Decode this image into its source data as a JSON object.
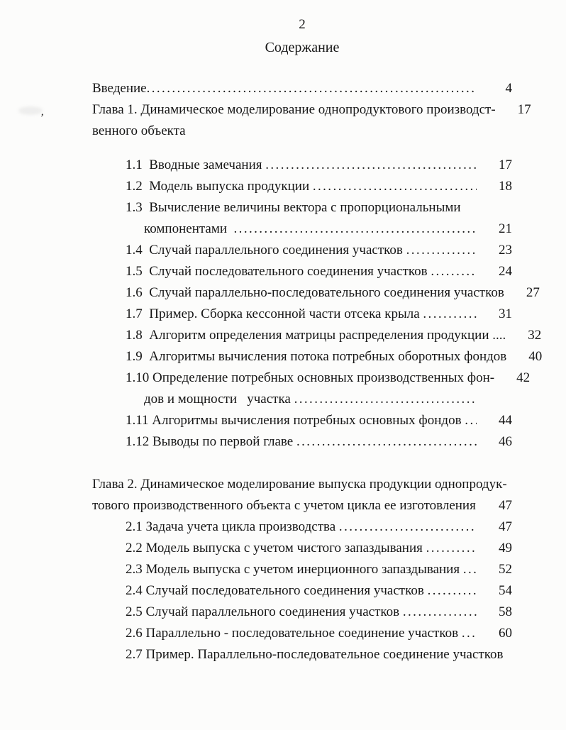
{
  "page": {
    "number": "2",
    "title": "Содержание"
  },
  "toc": {
    "leader_dots": "......................................................................................................................................................",
    "rows": [
      {
        "indent": 0,
        "text": "Введение",
        "leader": true,
        "page": "4"
      },
      {
        "indent": 0,
        "text": "Глава 1. Динамическое моделирование однопродуктового производст-",
        "leader": false,
        "page": "17"
      },
      {
        "indent": 0,
        "text": "венного объекта",
        "leader": false,
        "page": "",
        "gap": "sm"
      },
      {
        "indent": 1,
        "text": "1.1  Вводные замечания ",
        "leader": true,
        "page": "17"
      },
      {
        "indent": 1,
        "text": "1.2  Модель выпуска продукции ",
        "leader": true,
        "page": "18"
      },
      {
        "indent": 1,
        "text": "1.3  Вычисление величины вектора с пропорциональными",
        "leader": false,
        "page": ""
      },
      {
        "indent": 2,
        "text": "компонентами  ",
        "leader": true,
        "page": "21"
      },
      {
        "indent": 1,
        "text": "1.4  Случай параллельного соединения участков ",
        "leader": true,
        "page": "23"
      },
      {
        "indent": 1,
        "text": "1.5  Случай последовательного соединения участков ",
        "leader": true,
        "page": "24"
      },
      {
        "indent": 1,
        "text": "1.6  Случай параллельно-последовательного соединения участков",
        "leader": false,
        "page": "27"
      },
      {
        "indent": 1,
        "text": "1.7  Пример. Сборка кессонной части отсека крыла ",
        "leader": true,
        "page": "31"
      },
      {
        "indent": 1,
        "text": "1.8  Алгоритм определения матрицы распределения продукции ....",
        "leader": false,
        "page": "32"
      },
      {
        "indent": 1,
        "text": "1.9  Алгоритмы вычисления потока потребных оборотных фондов",
        "leader": false,
        "page": "40"
      },
      {
        "indent": 1,
        "text": "1.10 Определение потребных основных производственных фон-",
        "leader": false,
        "page": "42"
      },
      {
        "indent": 2,
        "text": "дов и мощности   участка ",
        "leader": true,
        "page": ""
      },
      {
        "indent": 1,
        "text": "1.11 Алгоритмы вычисления потребных основных фондов ",
        "leader": true,
        "page": "44"
      },
      {
        "indent": 1,
        "text": "1.12 Выводы по первой главе ",
        "leader": true,
        "page": "46",
        "gap": "lg"
      },
      {
        "indent": 0,
        "text": "Глава 2. Динамическое моделирование выпуска продукции однопродук-",
        "leader": false,
        "page": ""
      },
      {
        "indent": 0,
        "text": "тового производственного объекта с учетом цикла ее изготовления",
        "leader": false,
        "page": "47"
      },
      {
        "indent": 1,
        "text": "2.1 Задача учета цикла производства ",
        "leader": true,
        "page": "47"
      },
      {
        "indent": 1,
        "text": "2.2 Модель выпуска с учетом чистого запаздывания ",
        "leader": true,
        "page": "49"
      },
      {
        "indent": 1,
        "text": "2.3 Модель выпуска с учетом инерционного запаздывания ",
        "leader": true,
        "page": "52"
      },
      {
        "indent": 1,
        "text": "2.4 Случай последовательного соединения участков ",
        "leader": true,
        "page": "54"
      },
      {
        "indent": 1,
        "text": "2.5 Случай параллельного соединения участков ",
        "leader": true,
        "page": "58"
      },
      {
        "indent": 1,
        "text": "2.6 Параллельно - последовательное соединение участков ",
        "leader": true,
        "page": "60"
      },
      {
        "indent": 1,
        "text": "2.7 Пример. Параллельно-последовательное соединение участков",
        "leader": false,
        "page": ""
      }
    ]
  },
  "artifacts": {
    "comma_mark": "ʼ"
  }
}
